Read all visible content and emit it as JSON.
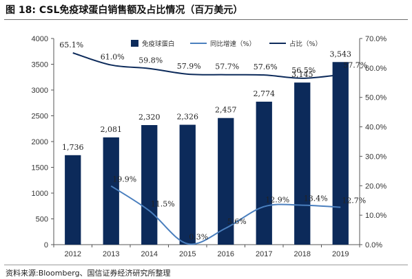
{
  "title": "图 18:  CSL免疫球蛋白销售额及占比情况（百万美元）",
  "source": "资料来源:Bloomberg、国信证券经济研究所整理",
  "colors": {
    "bar": "#0c2a5a",
    "growth_line": "#4a7fbe",
    "share_line": "#0c2a5a"
  },
  "chart_data": {
    "type": "bar",
    "categories": [
      "2012",
      "2013",
      "2014",
      "2015",
      "2016",
      "2017",
      "2018",
      "2019"
    ],
    "ylim_left": [
      0,
      4000
    ],
    "ylim_right": [
      0,
      0.7
    ],
    "yticks_left": [
      "0",
      "500",
      "1000",
      "1500",
      "2000",
      "2500",
      "3000",
      "3500",
      "4000"
    ],
    "yticks_right": [
      "0.0%",
      "10.0%",
      "20.0%",
      "30.0%",
      "40.0%",
      "50.0%",
      "60.0%",
      "70.0%"
    ],
    "legend_position": "top",
    "series": [
      {
        "name": "免疫球蛋白",
        "type": "bar",
        "axis": "left",
        "values": [
          1736,
          2081,
          2320,
          2326,
          2457,
          2774,
          3145,
          3543
        ],
        "labels": [
          "1,736",
          "2,081",
          "2,320",
          "2,326",
          "2,457",
          "2,774",
          "3,145",
          "3,543"
        ]
      },
      {
        "name": "同比增速（%）",
        "type": "line",
        "axis": "right",
        "values": [
          null,
          0.199,
          0.115,
          0.003,
          0.056,
          0.129,
          0.134,
          0.127
        ],
        "labels": [
          "",
          "19.9%",
          "11.5%",
          "0.3%",
          "5.6%",
          "12.9%",
          "13.4%",
          "12.7%"
        ]
      },
      {
        "name": "占比（%）",
        "type": "line",
        "axis": "right",
        "values": [
          0.651,
          0.61,
          0.598,
          0.579,
          0.577,
          0.576,
          0.565,
          0.577
        ],
        "labels": [
          "65.1%",
          "61.0%",
          "59.8%",
          "57.9%",
          "57.7%",
          "57.6%",
          "56.5%",
          "57.7%"
        ]
      }
    ]
  }
}
